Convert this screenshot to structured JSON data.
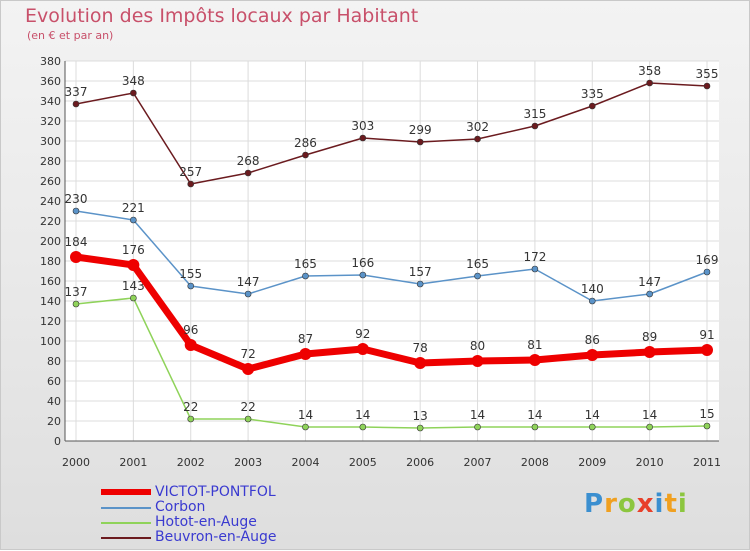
{
  "header": {
    "title": "Evolution des Impôts locaux par Habitant",
    "subtitle": "(en € et par an)"
  },
  "chart_data": {
    "type": "line",
    "title": "Evolution des Impôts locaux par Habitant",
    "ylabel": "(en € et par an)",
    "xlabel": "",
    "ylim": [
      0,
      380
    ],
    "ytick_step": 20,
    "grid": true,
    "x": [
      "2000",
      "2001",
      "2002",
      "2003",
      "2004",
      "2005",
      "2006",
      "2007",
      "2008",
      "2009",
      "2010",
      "2011"
    ],
    "series": [
      {
        "name": "Beuvron-en-Auge",
        "color": "#6b1b1f",
        "values": [
          337,
          348,
          257,
          268,
          286,
          303,
          299,
          302,
          315,
          335,
          358,
          355
        ]
      },
      {
        "name": "Corbon",
        "color": "#5b93c8",
        "values": [
          230,
          221,
          155,
          147,
          165,
          166,
          157,
          165,
          172,
          140,
          147,
          169
        ]
      },
      {
        "name": "Hotot-en-Auge",
        "color": "#8fd35a",
        "values": [
          137,
          143,
          22,
          22,
          14,
          14,
          13,
          14,
          14,
          14,
          14,
          15
        ]
      },
      {
        "name": "VICTOT-PONTFOL",
        "color": "#ee0000",
        "values": [
          184,
          176,
          96,
          72,
          87,
          92,
          78,
          80,
          81,
          86,
          89,
          91
        ]
      }
    ]
  },
  "legend": [
    {
      "label": "VICTOT-PONTFOL",
      "color": "#ee0000"
    },
    {
      "label": "Corbon",
      "color": "#5b93c8"
    },
    {
      "label": "Hotot-en-Auge",
      "color": "#8fd35a"
    },
    {
      "label": "Beuvron-en-Auge",
      "color": "#6b1b1f"
    }
  ],
  "logo": {
    "text": "Proxiti"
  }
}
